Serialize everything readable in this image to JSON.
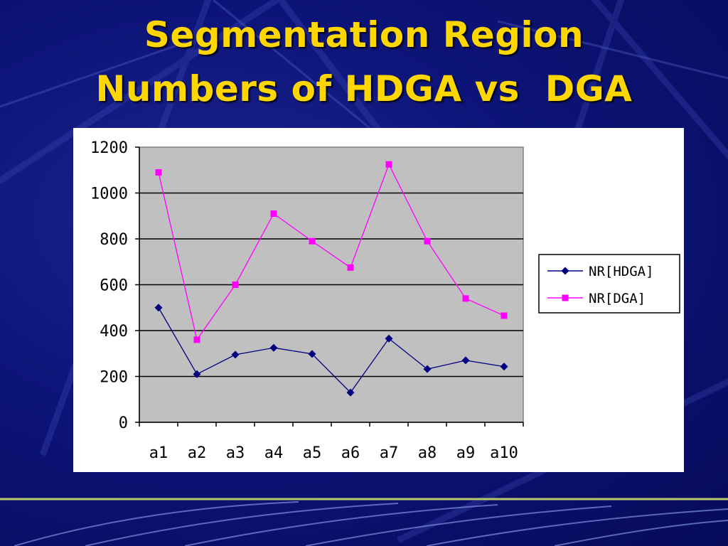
{
  "slide": {
    "title_line_1": "Segmentation Region",
    "title_line_2": "Numbers of HDGA vs  DGA"
  },
  "colors": {
    "background": "#0a0f6e",
    "title": "#ffd700",
    "plot_area": "#c0c0c0",
    "series_hdga": "#000080",
    "series_dga": "#ff00ff"
  },
  "chart_data": {
    "type": "line",
    "title": "",
    "xlabel": "",
    "ylabel": "",
    "categories": [
      "a1",
      "a2",
      "a3",
      "a4",
      "a5",
      "a6",
      "a7",
      "a8",
      "a9",
      "a10"
    ],
    "ylim": [
      0,
      1200
    ],
    "yticks": [
      0,
      200,
      400,
      600,
      800,
      1000,
      1200
    ],
    "grid": "horizontal",
    "legend_position": "right",
    "series": [
      {
        "name": "NR[HDGA]",
        "marker": "diamond",
        "color": "#000080",
        "values": [
          500,
          210,
          295,
          325,
          298,
          130,
          365,
          232,
          270,
          243
        ]
      },
      {
        "name": "NR[DGA]",
        "marker": "square",
        "color": "#ff00ff",
        "values": [
          1090,
          360,
          600,
          910,
          790,
          675,
          1125,
          790,
          540,
          465
        ]
      }
    ]
  }
}
